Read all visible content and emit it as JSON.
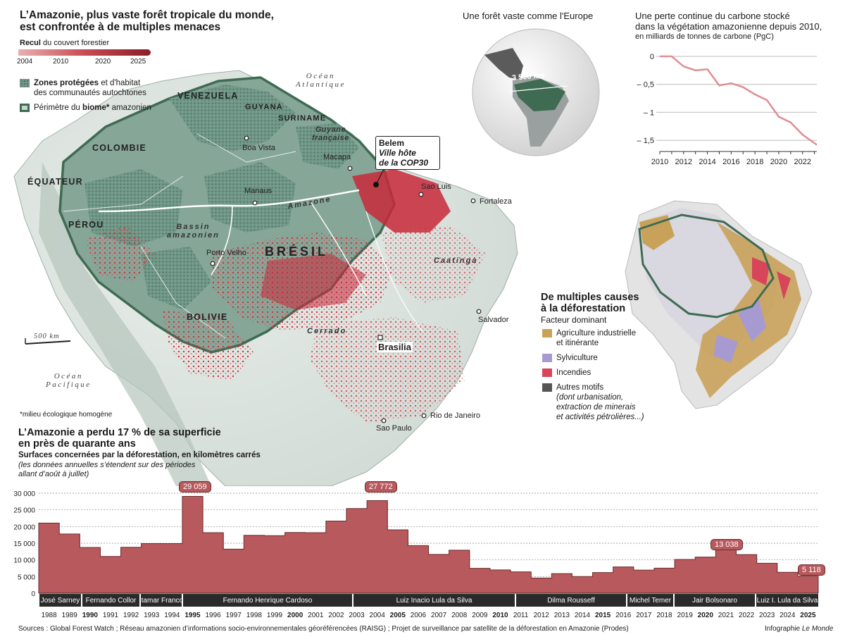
{
  "main_title": {
    "line1": "L’Amazonie, plus vaste forêt tropicale du monde,",
    "line2": "est confrontée à de multiples menaces"
  },
  "forest_legend": {
    "title_bold": "Recul",
    "title_rest": "du couvert forestier",
    "years": [
      "2004",
      "2010",
      "2020",
      "2025"
    ],
    "protected_bold": "Zones protégées",
    "protected_rest": "et d'habitat",
    "protected_line2": "des communautés autochtones",
    "biome_rest1": "Périmètre du",
    "biome_bold": "biome*",
    "biome_rest2": "amazonien",
    "footnote": "*milieu écologique homogène"
  },
  "map": {
    "countries": [
      "VENEZUELA",
      "GUYANA",
      "SURINAME",
      "COLOMBIE",
      "ÉQUATEUR",
      "PÉROU",
      "BOLIVIE",
      "BRÉSIL"
    ],
    "guyane_line1": "Guyane",
    "guyane_line2": "française",
    "river": "Amazone",
    "basin_line1": "Bassin",
    "basin_line2": "amazonien",
    "cerrado": "Cerrado",
    "caatinga": "Caatinga",
    "ocean_atl_1": "Océan",
    "ocean_atl_2": "Atlantique",
    "ocean_pac_1": "Océan",
    "ocean_pac_2": "Pacifique",
    "scale": "500 km",
    "cities": {
      "boa_vista": "Boa Vista",
      "macapa": "Macapa",
      "manaus": "Manaus",
      "sao_luis": "Sao Luis",
      "fortaleza": "Fortaleza",
      "porto_velho": "Porto Velho",
      "salvador": "Salvador",
      "brasilia": "Brasilia",
      "rio": "Rio de Janeiro",
      "sao_paulo": "Sao Paulo"
    },
    "belem_callout": {
      "name": "Belem",
      "line1": "Ville hôte",
      "line2": "de la COP30"
    }
  },
  "globe": {
    "title": "Une forêt vaste comme l'Europe",
    "distance": "3 500 km"
  },
  "carbon_chart": {
    "title_line1": "Une perte continue du carbone stocké",
    "title_line2": "dans la végétation amazonienne depuis 2010,",
    "subtitle": "en milliards de tonnes de carbone (PgC)"
  },
  "causes": {
    "title_line1": "De multiples causes",
    "title_line2": "à la déforestation",
    "subtitle": "Facteur dominant",
    "items": [
      {
        "line1": "Agriculture industrielle",
        "line2": "et itinérante",
        "color": "#c9a25a"
      },
      {
        "line1": "Sylviculture",
        "line2": "",
        "color": "#a79ad0"
      },
      {
        "line1": "Incendies",
        "line2": "",
        "color": "#d6455a"
      },
      {
        "line1": "Autres motifs",
        "line2": "(dont urbanisation,",
        "line3": "extraction de minerais",
        "line4": "et activités pétrolières...)",
        "color": "#555555"
      }
    ]
  },
  "bar_chart": {
    "title_line1": "L’Amazonie a perdu 17 % de sa superficie",
    "title_line2": "en près de quarante ans",
    "subtitle": "Surfaces concernées par la déforestation, en kilomètres carrés",
    "note_line1": "(les données annuelles s’étendent sur des périodes",
    "note_line2": "allant d’août à juillet)",
    "callouts": [
      "29 059",
      "27 772",
      "13 038",
      "5 118"
    ],
    "presidents": [
      {
        "name": "José Sarney"
      },
      {
        "name": "Fernando Collor"
      },
      {
        "name": "Itamar Franco"
      },
      {
        "name": "Fernando Henrique Cardoso"
      },
      {
        "name": "Luiz Inacio Lula da Silva"
      },
      {
        "name": "Dilma Rousseff"
      },
      {
        "name": "Michel Temer"
      },
      {
        "name": "Jair Bolsonaro"
      },
      {
        "name": "Luiz I. Lula da Silva"
      }
    ]
  },
  "chart_data": [
    {
      "type": "line",
      "x": [
        2010,
        2011,
        2012,
        2013,
        2014,
        2015,
        2016,
        2017,
        2018,
        2019,
        2020,
        2021,
        2022,
        2023
      ],
      "y": [
        0,
        0,
        -0.18,
        -0.25,
        -0.23,
        -0.52,
        -0.48,
        -0.55,
        -0.68,
        -0.78,
        -1.08,
        -1.18,
        -1.4,
        -1.58
      ],
      "xticks": [
        "2010",
        "2012",
        "2014",
        "2016",
        "2018",
        "2020",
        "2022"
      ],
      "yticks": [
        "0",
        "– 0,5",
        "– 1",
        "– 1,5"
      ],
      "ylim": [
        -1.7,
        0
      ],
      "color": "#e08e93",
      "grid": true
    },
    {
      "type": "bar",
      "categories": [
        "1988",
        "1989",
        "1990",
        "1991",
        "1992",
        "1993",
        "1994",
        "1995",
        "1996",
        "1997",
        "1998",
        "1999",
        "2000",
        "2001",
        "2002",
        "2003",
        "2004",
        "2005",
        "2006",
        "2007",
        "2008",
        "2009",
        "2010",
        "2011",
        "2012",
        "2013",
        "2014",
        "2015",
        "2016",
        "2017",
        "2018",
        "2019",
        "2020",
        "2021",
        "2022",
        "2023",
        "2024",
        "2025"
      ],
      "bold_categories": [
        "1990",
        "1995",
        "2000",
        "2005",
        "2010",
        "2015",
        "2020",
        "2025"
      ],
      "values": [
        21050,
        17770,
        13730,
        11030,
        13786,
        14896,
        14896,
        29059,
        18161,
        13227,
        17383,
        17259,
        18226,
        18165,
        21651,
        25396,
        27772,
        19014,
        14286,
        11651,
        12911,
        7464,
        7000,
        6418,
        4571,
        5891,
        5012,
        6207,
        7893,
        6947,
        7536,
        10129,
        10851,
        13038,
        11594,
        9001,
        6288,
        5118
      ],
      "yticks": [
        "0",
        "5 000",
        "10 000",
        "15 000",
        "20 000",
        "25 000",
        "30 000"
      ],
      "ylim": [
        0,
        30000
      ],
      "color": "#b85a5d"
    }
  ],
  "footer": {
    "sources": "Sources : Global Forest Watch ; Réseau amazonien d’informations socio-environnementales géoréférencées (RAISG) ; Projet de surveillance par satellite de la déforestation en Amazonie (Prodes)",
    "credit_prefix": "Infographie",
    "credit_name": "Le Monde"
  }
}
